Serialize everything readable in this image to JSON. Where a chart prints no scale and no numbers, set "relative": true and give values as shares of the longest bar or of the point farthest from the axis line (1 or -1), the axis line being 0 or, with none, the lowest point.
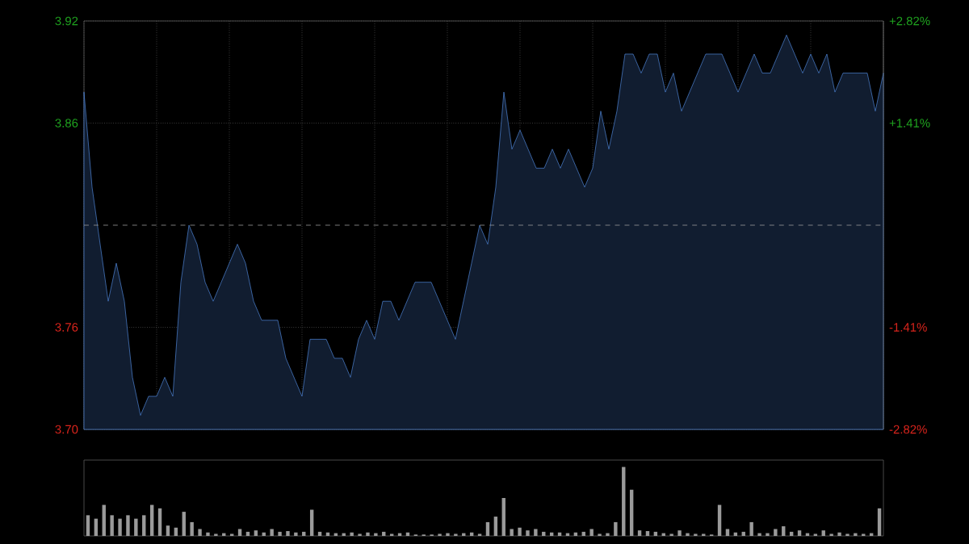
{
  "chart_data": [
    {
      "type": "area",
      "color": "#4f86d8",
      "categories": [
        null,
        null,
        null,
        null,
        null,
        null,
        null,
        null,
        null,
        null,
        null,
        null,
        null,
        null,
        null,
        null,
        null,
        null,
        null,
        null,
        null,
        null,
        null,
        null,
        null,
        null,
        null,
        null,
        null,
        null,
        null,
        null,
        null,
        null,
        null,
        null,
        null,
        null,
        null,
        null,
        null,
        null,
        null,
        null,
        null,
        null,
        null,
        null,
        null,
        null,
        null,
        null,
        null,
        null,
        null,
        null,
        null,
        null,
        null,
        null,
        null,
        null,
        null,
        null,
        null,
        null,
        null,
        null,
        null,
        null,
        null,
        null,
        null,
        null,
        null,
        null,
        null,
        null,
        null,
        null,
        null,
        null,
        null,
        null,
        null,
        null,
        null,
        null,
        null,
        null,
        null,
        null,
        null,
        null,
        null,
        null,
        null,
        null,
        null,
        null
      ],
      "values": [
        3.88,
        3.83,
        3.8,
        3.77,
        3.79,
        3.77,
        3.73,
        3.71,
        3.72,
        3.72,
        3.73,
        3.72,
        3.78,
        3.81,
        3.8,
        3.78,
        3.77,
        3.78,
        3.79,
        3.8,
        3.79,
        3.77,
        3.76,
        3.76,
        3.76,
        3.74,
        3.73,
        3.72,
        3.75,
        3.75,
        3.75,
        3.74,
        3.74,
        3.73,
        3.75,
        3.76,
        3.75,
        3.77,
        3.77,
        3.76,
        3.77,
        3.78,
        3.78,
        3.78,
        3.77,
        3.76,
        3.75,
        3.77,
        3.79,
        3.81,
        3.8,
        3.83,
        3.88,
        3.85,
        3.86,
        3.85,
        3.84,
        3.84,
        3.85,
        3.84,
        3.85,
        3.84,
        3.83,
        3.84,
        3.87,
        3.85,
        3.87,
        3.9,
        3.9,
        3.89,
        3.9,
        3.9,
        3.88,
        3.89,
        3.87,
        3.88,
        3.89,
        3.9,
        3.9,
        3.9,
        3.89,
        3.88,
        3.89,
        3.9,
        3.89,
        3.89,
        3.9,
        3.91,
        3.9,
        3.89,
        3.9,
        3.89,
        3.9,
        3.88,
        3.89,
        3.89,
        3.89,
        3.89,
        3.87,
        3.89
      ],
      "ylim": [
        3.7026,
        3.9174
      ],
      "yticks": [
        {
          "value": 3.7026,
          "label": "3.70"
        },
        {
          "value": 3.7563,
          "label": "3.76"
        },
        {
          "value": 3.8637,
          "label": "3.86"
        },
        {
          "value": 3.9174,
          "label": "3.92"
        }
      ],
      "y2lim": [
        -2.82,
        2.82
      ],
      "y2ticks": [
        {
          "value": -2.82,
          "label": "-2.82%"
        },
        {
          "value": -1.41,
          "label": "-1.41%"
        },
        {
          "value": 1.41,
          "label": "+1.41%"
        },
        {
          "value": 2.82,
          "label": "+2.82%"
        }
      ],
      "ref_lines": [
        {
          "axis": "y",
          "value": 3.81,
          "line_style": "dashed"
        }
      ],
      "grid": true,
      "tick_labels": "y"
    },
    {
      "type": "bar",
      "relative": true,
      "color": "#9a9a9a",
      "categories": [
        null,
        null,
        null,
        null,
        null,
        null,
        null,
        null,
        null,
        null,
        null,
        null,
        null,
        null,
        null,
        null,
        null,
        null,
        null,
        null,
        null,
        null,
        null,
        null,
        null,
        null,
        null,
        null,
        null,
        null,
        null,
        null,
        null,
        null,
        null,
        null,
        null,
        null,
        null,
        null,
        null,
        null,
        null,
        null,
        null,
        null,
        null,
        null,
        null,
        null,
        null,
        null,
        null,
        null,
        null,
        null,
        null,
        null,
        null,
        null,
        null,
        null,
        null,
        null,
        null,
        null,
        null,
        null,
        null,
        null,
        null,
        null,
        null,
        null,
        null,
        null,
        null,
        null,
        null,
        null,
        null,
        null,
        null,
        null,
        null,
        null,
        null,
        null,
        null,
        null,
        null,
        null,
        null,
        null,
        null,
        null,
        null,
        null,
        null,
        null
      ],
      "values": [
        0.3,
        0.25,
        0.45,
        0.3,
        0.25,
        0.3,
        0.25,
        0.3,
        0.45,
        0.4,
        0.15,
        0.12,
        0.35,
        0.2,
        0.1,
        0.05,
        0.03,
        0.04,
        0.03,
        0.1,
        0.06,
        0.08,
        0.05,
        0.1,
        0.06,
        0.07,
        0.05,
        0.06,
        0.38,
        0.06,
        0.05,
        0.04,
        0.04,
        0.05,
        0.03,
        0.05,
        0.04,
        0.06,
        0.03,
        0.04,
        0.05,
        0.02,
        0.02,
        0.02,
        0.03,
        0.04,
        0.03,
        0.04,
        0.05,
        0.03,
        0.2,
        0.28,
        0.55,
        0.1,
        0.12,
        0.08,
        0.1,
        0.06,
        0.05,
        0.05,
        0.04,
        0.05,
        0.06,
        0.1,
        0.03,
        0.04,
        0.2,
        1.0,
        0.67,
        0.08,
        0.07,
        0.06,
        0.04,
        0.03,
        0.08,
        0.04,
        0.03,
        0.03,
        0.02,
        0.45,
        0.1,
        0.05,
        0.06,
        0.2,
        0.04,
        0.04,
        0.1,
        0.14,
        0.06,
        0.08,
        0.04,
        0.03,
        0.08,
        0.03,
        0.05,
        0.03,
        0.04,
        0.03,
        0.04,
        0.4
      ]
    }
  ]
}
